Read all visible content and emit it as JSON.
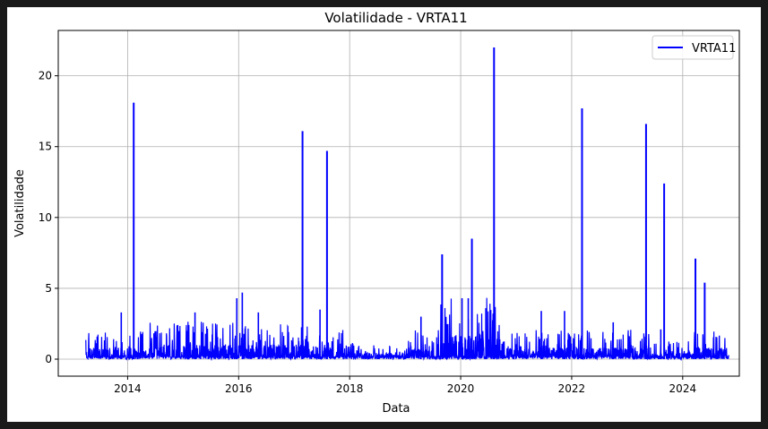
{
  "chart_data": {
    "type": "line",
    "title": "Volatilidade - VRTA11",
    "xlabel": "Data",
    "ylabel": "Volatilidade",
    "x_range": [
      "2013-04-01",
      "2024-10-31"
    ],
    "xlim": [
      2012.75,
      2025.02
    ],
    "ylim": [
      -1.2,
      23.2
    ],
    "x_ticks": [
      {
        "value": 2014,
        "label": "2014"
      },
      {
        "value": 2016,
        "label": "2016"
      },
      {
        "value": 2018,
        "label": "2018"
      },
      {
        "value": 2020,
        "label": "2020"
      },
      {
        "value": 2022,
        "label": "2022"
      },
      {
        "value": 2024,
        "label": "2024"
      }
    ],
    "y_ticks": [
      {
        "value": 0,
        "label": "0"
      },
      {
        "value": 5,
        "label": "5"
      },
      {
        "value": 10,
        "label": "10"
      },
      {
        "value": 15,
        "label": "15"
      },
      {
        "value": 20,
        "label": "20"
      }
    ],
    "grid": true,
    "legend_position": "top-right",
    "series": [
      {
        "name": "VRTA11",
        "color": "#0000ff",
        "spikes": [
          {
            "date": "2014-02-10",
            "value": 18.1
          },
          {
            "date": "2017-02-25",
            "value": 16.1
          },
          {
            "date": "2017-08-05",
            "value": 14.7
          },
          {
            "date": "2019-09-01",
            "value": 7.4
          },
          {
            "date": "2020-03-15",
            "value": 8.5
          },
          {
            "date": "2020-08-08",
            "value": 22.0
          },
          {
            "date": "2022-03-10",
            "value": 17.7
          },
          {
            "date": "2023-05-05",
            "value": 16.6
          },
          {
            "date": "2023-09-01",
            "value": 12.4
          },
          {
            "date": "2024-03-25",
            "value": 7.1
          },
          {
            "date": "2024-05-25",
            "value": 5.4
          }
        ],
        "secondary_peaks": [
          {
            "date": "2013-11-20",
            "value": 3.3
          },
          {
            "date": "2015-03-20",
            "value": 3.3
          },
          {
            "date": "2015-12-20",
            "value": 4.3
          },
          {
            "date": "2016-01-25",
            "value": 4.7
          },
          {
            "date": "2016-05-10",
            "value": 3.3
          },
          {
            "date": "2017-06-20",
            "value": 3.5
          },
          {
            "date": "2019-04-15",
            "value": 3.0
          },
          {
            "date": "2020-01-10",
            "value": 4.3
          },
          {
            "date": "2020-02-20",
            "value": 4.3
          },
          {
            "date": "2020-06-15",
            "value": 3.6
          },
          {
            "date": "2021-06-15",
            "value": 3.4
          },
          {
            "date": "2021-11-15",
            "value": 3.4
          },
          {
            "date": "2022-10-01",
            "value": 2.6
          },
          {
            "date": "2023-08-10",
            "value": 2.1
          }
        ]
      }
    ]
  }
}
